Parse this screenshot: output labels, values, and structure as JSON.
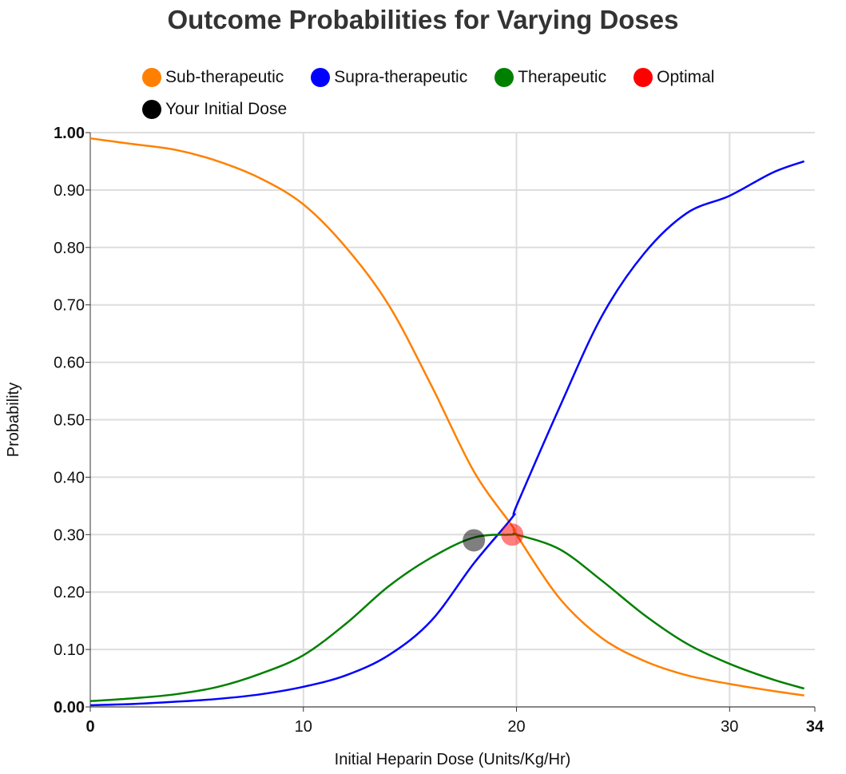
{
  "chart_data": {
    "type": "line",
    "title": "Outcome Probabilities for Varying Doses",
    "xlabel": "Initial Heparin Dose (Units/Kg/Hr)",
    "ylabel": "Probability",
    "xlim": [
      0,
      34
    ],
    "ylim": [
      0,
      1
    ],
    "x_ticks": [
      0,
      10,
      20,
      30,
      34
    ],
    "x_tick_labels": [
      "0",
      "10",
      "20",
      "30",
      "34"
    ],
    "y_ticks": [
      0,
      0.1,
      0.2,
      0.3,
      0.4,
      0.5,
      0.6,
      0.7,
      0.8,
      0.9,
      1.0
    ],
    "y_tick_labels": [
      "0.00",
      "0.10",
      "0.20",
      "0.30",
      "0.40",
      "0.50",
      "0.60",
      "0.70",
      "0.80",
      "0.90",
      "1.00"
    ],
    "grid": true,
    "legend_position": "top",
    "x": [
      0,
      2,
      4,
      6,
      8,
      10,
      12,
      14,
      16,
      18,
      19.8,
      20,
      22,
      24,
      26,
      28,
      30,
      32,
      33.5
    ],
    "series": [
      {
        "name": "Sub-therapeutic",
        "color": "#ff8000",
        "values": [
          0.99,
          0.98,
          0.97,
          0.95,
          0.92,
          0.875,
          0.8,
          0.7,
          0.56,
          0.41,
          0.315,
          0.3,
          0.19,
          0.12,
          0.08,
          0.055,
          0.04,
          0.028,
          0.02
        ]
      },
      {
        "name": "Supra-therapeutic",
        "color": "#0000ff",
        "values": [
          0.003,
          0.005,
          0.009,
          0.014,
          0.022,
          0.035,
          0.055,
          0.09,
          0.15,
          0.25,
          0.33,
          0.35,
          0.52,
          0.68,
          0.79,
          0.86,
          0.89,
          0.93,
          0.95
        ]
      },
      {
        "name": "Therapeutic",
        "color": "#008000",
        "values": [
          0.01,
          0.015,
          0.022,
          0.035,
          0.058,
          0.09,
          0.145,
          0.21,
          0.26,
          0.295,
          0.3,
          0.3,
          0.275,
          0.22,
          0.16,
          0.11,
          0.075,
          0.048,
          0.032
        ]
      }
    ],
    "points": [
      {
        "name": "Optimal",
        "color": "#ff0000",
        "x": 19.8,
        "y": 0.3
      },
      {
        "name": "Your Initial Dose",
        "color": "#000000",
        "x": 18.0,
        "y": 0.29
      }
    ],
    "legend_rows": [
      [
        {
          "label": "Sub-therapeutic",
          "color": "#ff8000"
        },
        {
          "label": "Supra-therapeutic",
          "color": "#0000ff"
        },
        {
          "label": "Therapeutic",
          "color": "#008000"
        },
        {
          "label": "Optimal",
          "color": "#ff0000"
        }
      ],
      [
        {
          "label": "Your Initial Dose",
          "color": "#000000"
        }
      ]
    ]
  }
}
